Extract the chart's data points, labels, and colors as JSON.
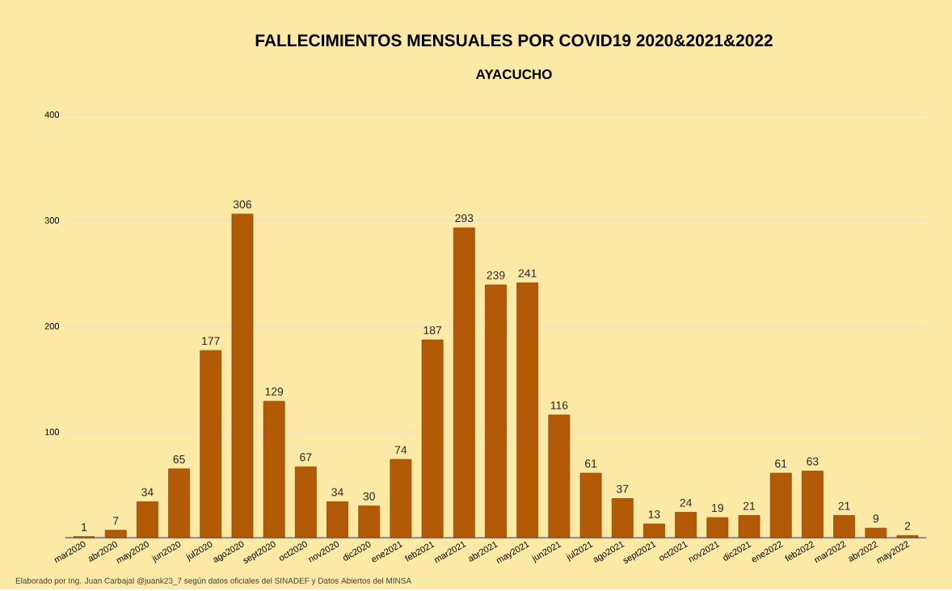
{
  "chart_data": {
    "type": "bar",
    "title": "FALLECIMIENTOS MENSUALES POR COVID19 2020&2021&2022",
    "subtitle": "AYACUCHO",
    "categories": [
      "mar2020",
      "abr2020",
      "may2020",
      "jun2020",
      "jul2020",
      "ago2020",
      "sept2020",
      "oct2020",
      "nov2020",
      "dic2020",
      "ene2021",
      "feb2021",
      "mar2021",
      "abr2021",
      "may2021",
      "jun2021",
      "jul2021",
      "ago2021",
      "sept2021",
      "oct2021",
      "nov2021",
      "dic2021",
      "ene2022",
      "feb2022",
      "mar2022",
      "abr2022",
      "may2022"
    ],
    "values": [
      1,
      7,
      34,
      65,
      177,
      306,
      129,
      67,
      34,
      30,
      74,
      187,
      293,
      239,
      241,
      116,
      61,
      37,
      13,
      24,
      19,
      21,
      61,
      63,
      21,
      9,
      2
    ],
    "color": "#b35a06",
    "ylim": [
      0,
      400
    ],
    "yticks": [
      100,
      200,
      300,
      400
    ],
    "grid": "y",
    "data_labels": true,
    "annotations": [
      "Elaborado por Ing. Juan Carbajal @juank23_7 según datos oficiales del SINADEF y Datos Abiertos del MINSA"
    ]
  }
}
